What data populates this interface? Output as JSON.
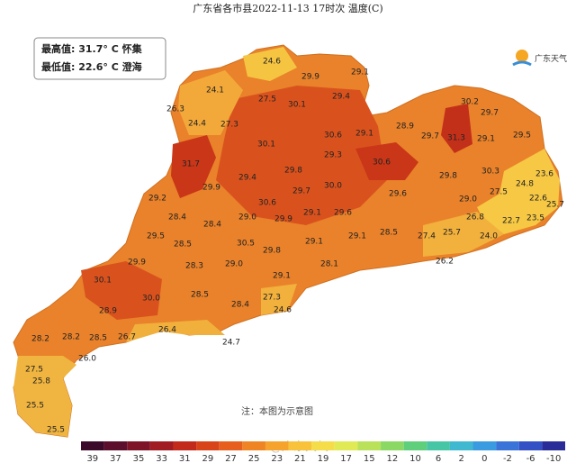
{
  "header": {
    "title": "广东省各市县2022-11-13 17时次 温度(C)"
  },
  "summary": {
    "max_label": "最高值: 31.7° C 怀集",
    "min_label": "最低值: 22.6° C 澄海"
  },
  "logo": {
    "text": "广东天气"
  },
  "stations": [
    "24.6",
    "24.1",
    "26.3",
    "24.4",
    "27.5",
    "27.3",
    "29.9",
    "29.1",
    "30.1",
    "29.4",
    "30.2",
    "29.7",
    "28.9",
    "29.7",
    "31.3",
    "29.1",
    "29.5",
    "30.6",
    "29.1",
    "30.1",
    "31.7",
    "29.3",
    "30.6",
    "29.8",
    "29.4",
    "29.8",
    "30.3",
    "23.6",
    "24.8",
    "22.6",
    "25.7",
    "23.5",
    "22.7",
    "27.5",
    "29.0",
    "26.8",
    "24.0",
    "25.7",
    "27.4",
    "29.9",
    "29.7",
    "30.0",
    "29.6",
    "29.2",
    "30.6",
    "29.0",
    "29.9",
    "29.1",
    "29.6",
    "28.4",
    "28.4",
    "28.5",
    "29.1",
    "29.5",
    "28.5",
    "30.5",
    "29.8",
    "29.1",
    "29.9",
    "28.3",
    "29.0",
    "29.1",
    "28.1",
    "26.2",
    "30.1",
    "30.0",
    "28.5",
    "28.4",
    "27.3",
    "24.6",
    "28.9",
    "26.4",
    "26.7",
    "28.5",
    "28.2",
    "28.2",
    "24.7",
    "26.0",
    "27.5",
    "25.8",
    "25.5",
    "25.5"
  ],
  "note": "注：本图为示意图",
  "watermark": "@广东天气",
  "legend": {
    "labels": [
      "39",
      "37",
      "35",
      "33",
      "31",
      "29",
      "27",
      "25",
      "23",
      "21",
      "19",
      "17",
      "15",
      "12",
      "10",
      "6",
      "2",
      "0",
      "-2",
      "-6",
      "-10"
    ]
  }
}
